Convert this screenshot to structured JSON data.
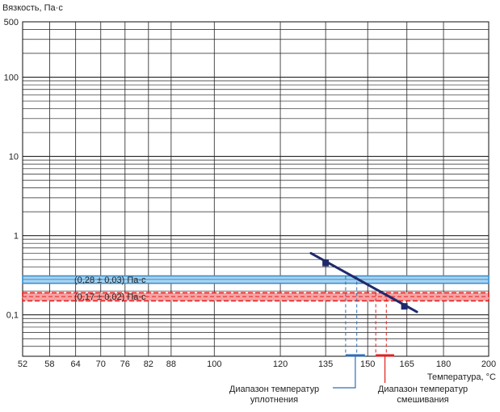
{
  "chart_data": {
    "type": "line",
    "title": "",
    "ylabel": "Вязкость, Па·с",
    "xlabel": "Температура, °С",
    "yscale": "log",
    "ylim": [
      0.03,
      500
    ],
    "y_tick_labels": [
      {
        "value": 500,
        "label": "500"
      },
      {
        "value": 100,
        "label": "100"
      },
      {
        "value": 10,
        "label": "10"
      },
      {
        "value": 1,
        "label": "1"
      },
      {
        "value": 0.1,
        "label": "0,1"
      }
    ],
    "xscale": "reciprocal-absolute-temperature",
    "xlim": [
      52,
      200
    ],
    "x_ticks": [
      52,
      58,
      64,
      70,
      76,
      82,
      88,
      100,
      120,
      135,
      150,
      165,
      180,
      200
    ],
    "grid": true,
    "series": [
      {
        "color": "#1f2a6b",
        "x": [
          130,
          169
        ],
        "y": [
          0.6,
          0.109
        ],
        "markers": [
          {
            "x": 135,
            "y": 0.45
          },
          {
            "x": 164,
            "y": 0.128
          }
        ]
      }
    ],
    "bands": [
      {
        "label": "(0,28 ± 0,03) Па·с",
        "center": 0.28,
        "low": 0.25,
        "high": 0.31,
        "fill": "#a9d3f0",
        "stroke": "#3a8fcf",
        "dashed": false
      },
      {
        "label": "(0,17 ± 0,02) Па·с",
        "center": 0.17,
        "low": 0.15,
        "high": 0.19,
        "fill": "#f6a3a3",
        "stroke": "#e02020",
        "dashed": true
      }
    ],
    "ranges": [
      {
        "name": "Диапазон температур уплотнения",
        "from": 142,
        "to": 149,
        "guides": [
          142,
          146
        ],
        "color": "#2f6db5"
      },
      {
        "name": "Диапазон температур смешивания",
        "from": 153,
        "to": 160,
        "guides": [
          153,
          157
        ],
        "color": "#e02020"
      }
    ],
    "annotations": [
      {
        "lines": [
          "Диапазон температур",
          "уплотнения"
        ],
        "color": "#2f6db5"
      },
      {
        "lines": [
          "Диапазон температур",
          "смешивания"
        ],
        "color": "#e02020"
      }
    ]
  }
}
